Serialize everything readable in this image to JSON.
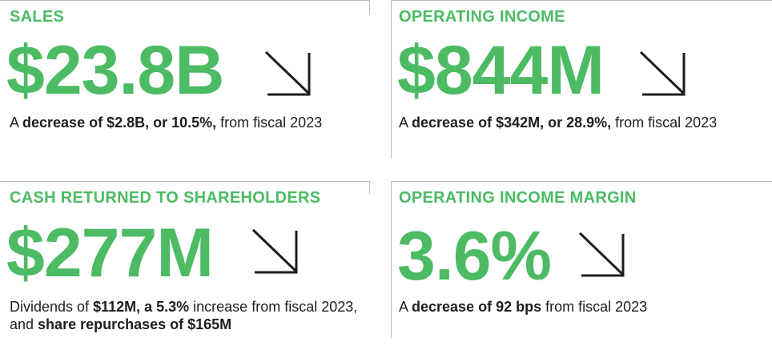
{
  "accent_color": "#4cbb64",
  "cards": [
    {
      "label": "SALES",
      "value": "$23.8B",
      "trend_icon": "arrow-down-right-icon",
      "desc": {
        "t1": "A ",
        "b1": "decrease of $2.8B, or 10.5%,",
        "t2": " from fiscal 2023"
      }
    },
    {
      "label": "OPERATING INCOME",
      "value": "$844M",
      "trend_icon": "arrow-down-right-icon",
      "desc": {
        "t1": "A ",
        "b1": "decrease of $342M, or 28.9%,",
        "t2": " from fiscal 2023"
      }
    },
    {
      "label": "CASH RETURNED TO SHAREHOLDERS",
      "value": "$277M",
      "trend_icon": "arrow-down-right-icon",
      "desc": {
        "t1": "Dividends of ",
        "b1": "$112M, a 5.3%",
        "t2": " increase from fiscal 2023, and ",
        "b2": "share repurchases of $165M"
      }
    },
    {
      "label": "OPERATING INCOME MARGIN",
      "value": "3.6%",
      "trend_icon": "arrow-down-right-icon",
      "desc": {
        "t1": "A ",
        "b1": "decrease of 92 bps",
        "t2": " from fiscal 2023"
      }
    }
  ]
}
